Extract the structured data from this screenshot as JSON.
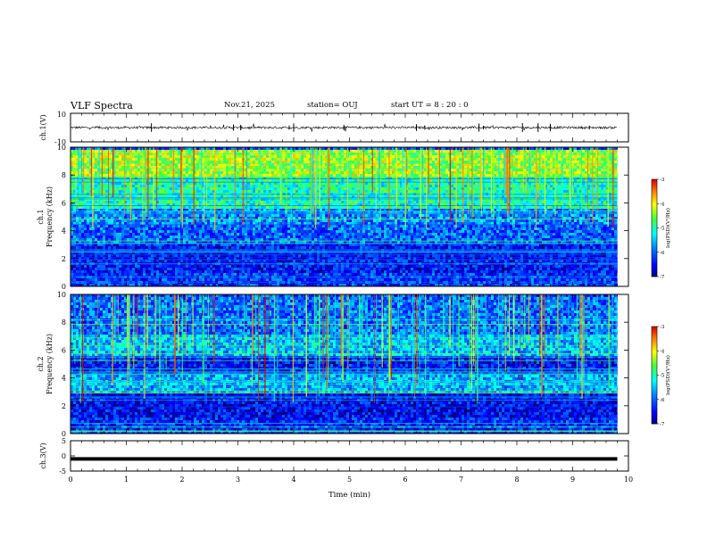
{
  "header": {
    "title": "VLF Spectra",
    "date": "Nov.21, 2025",
    "station": "station= OUJ",
    "start": "start  UT =  8 : 20 : 0"
  },
  "chart_data": [
    {
      "type": "line",
      "title": "ch.1 waveform",
      "ylabel": "ch.1(V)",
      "ylim": [
        -10,
        10
      ],
      "ytick_labels": [
        "10",
        "-10"
      ],
      "xlim": [
        0,
        10
      ],
      "baseline": 0,
      "description_values": {
        "mean": 0,
        "spike_range": [
          -3,
          3
        ]
      }
    },
    {
      "type": "heatmap",
      "title": "ch.1 spectrogram",
      "ylabel": "ch.1\nFrequency (kHz)",
      "ylim": [
        0,
        10
      ],
      "ytick_labels": [
        "0",
        "2",
        "4",
        "6",
        "8",
        "10"
      ],
      "xlim": [
        0,
        10
      ],
      "data_end_min": 9.8,
      "colorbar": {
        "label": "log(PSD)(V²/Hz)",
        "range": [
          -7,
          -3
        ],
        "tick_labels": [
          "-3",
          "-4",
          "-5",
          "-6",
          "-7"
        ]
      },
      "bands_khz": [
        {
          "from": 0,
          "to": 1,
          "level": -6.2
        },
        {
          "from": 1,
          "to": 3.2,
          "level": -6.4
        },
        {
          "from": 3.2,
          "to": 4.6,
          "level": -6.0
        },
        {
          "from": 4.6,
          "to": 5.6,
          "level": -5.8
        },
        {
          "from": 5.6,
          "to": 8.0,
          "level": -5.0
        },
        {
          "from": 8.0,
          "to": 10.0,
          "level": -4.3
        }
      ]
    },
    {
      "type": "heatmap",
      "title": "ch.2 spectrogram",
      "ylabel": "ch.2\nFrequency (kHz)",
      "ylim": [
        0,
        10
      ],
      "ytick_labels": [
        "0",
        "2",
        "4",
        "6",
        "8",
        "10"
      ],
      "xlim": [
        0,
        10
      ],
      "data_end_min": 9.8,
      "colorbar": {
        "label": "log(PSD)(V²/Hz)",
        "range": [
          -7,
          -3
        ],
        "tick_labels": [
          "-3",
          "-4",
          "-5",
          "-6",
          "-7"
        ]
      },
      "bands_khz": [
        {
          "from": 0,
          "to": 1.2,
          "level": -6.3
        },
        {
          "from": 1.2,
          "to": 3.0,
          "level": -6.5
        },
        {
          "from": 3.0,
          "to": 4.4,
          "level": -5.6
        },
        {
          "from": 4.4,
          "to": 5.6,
          "level": -6.4
        },
        {
          "from": 5.6,
          "to": 7.2,
          "level": -5.5
        },
        {
          "from": 7.2,
          "to": 10.0,
          "level": -5.9
        }
      ]
    },
    {
      "type": "line",
      "title": "ch.3 waveform",
      "ylabel": "ch.3(V)",
      "ylim": [
        -5,
        5
      ],
      "ytick_labels": [
        "5",
        "0",
        "-5"
      ],
      "xlim": [
        0,
        10
      ],
      "baseline": -1
    }
  ],
  "xaxis": {
    "label": "Time (min)",
    "tick_labels": [
      "0",
      "1",
      "2",
      "3",
      "4",
      "5",
      "6",
      "7",
      "8",
      "9",
      "10"
    ]
  }
}
